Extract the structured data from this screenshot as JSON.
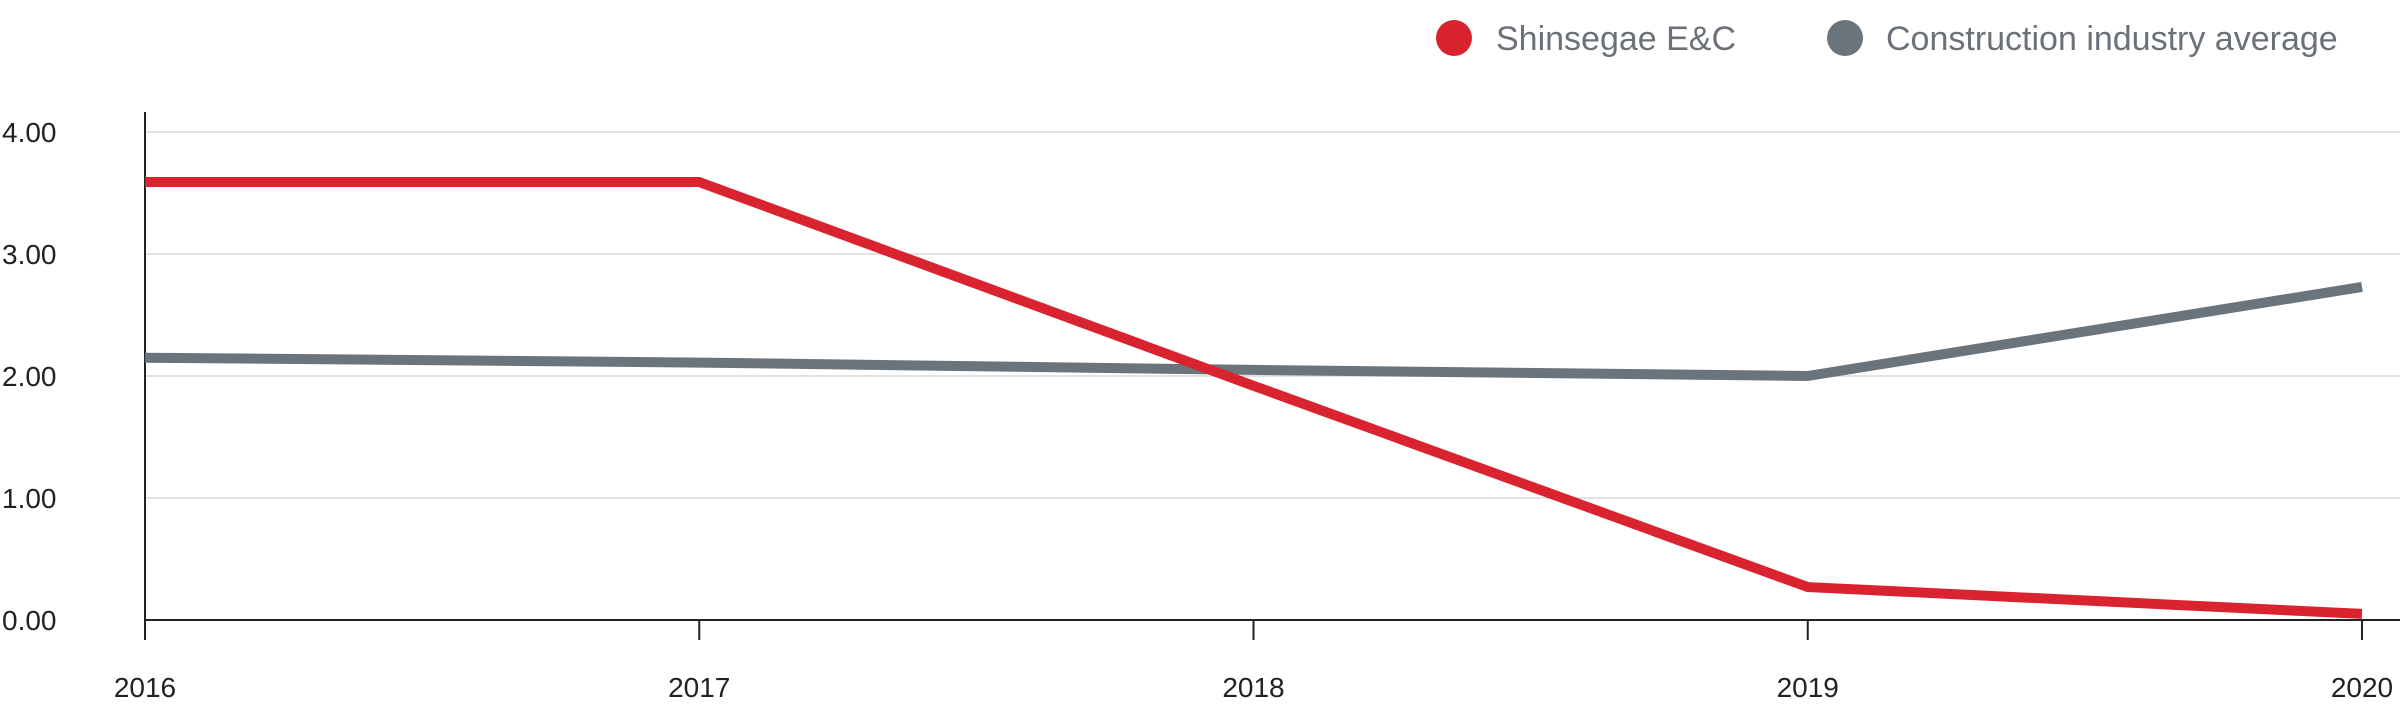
{
  "chart_data": {
    "type": "line",
    "categories": [
      "2016",
      "2017",
      "2018",
      "2019",
      "2020"
    ],
    "y_tick_labels": [
      "0.00",
      "1.00",
      "2.00",
      "3.00",
      "4.00"
    ],
    "y_ticks": [
      0,
      1,
      2,
      3,
      4
    ],
    "ylim": [
      0,
      4.15
    ],
    "grid": true,
    "legend_position": "top-right",
    "series": [
      {
        "name": "Shinsegae E&C",
        "color": "#d9232e",
        "values": [
          3.59,
          3.59,
          1.92,
          0.27,
          0.05
        ]
      },
      {
        "name": "Construction industry average",
        "color": "#6b747b",
        "values": [
          2.15,
          2.11,
          2.05,
          2.0,
          2.73
        ]
      }
    ]
  }
}
